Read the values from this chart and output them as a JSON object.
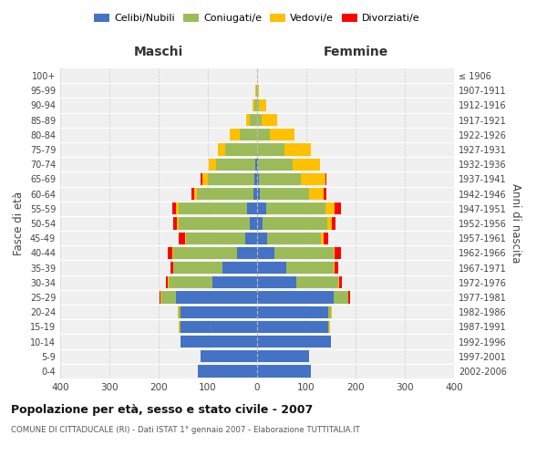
{
  "age_groups": [
    "0-4",
    "5-9",
    "10-14",
    "15-19",
    "20-24",
    "25-29",
    "30-34",
    "35-39",
    "40-44",
    "45-49",
    "50-54",
    "55-59",
    "60-64",
    "65-69",
    "70-74",
    "75-79",
    "80-84",
    "85-89",
    "90-94",
    "95-99",
    "100+"
  ],
  "birth_years": [
    "2002-2006",
    "1997-2001",
    "1992-1996",
    "1987-1991",
    "1982-1986",
    "1977-1981",
    "1972-1976",
    "1967-1971",
    "1962-1966",
    "1957-1961",
    "1952-1956",
    "1947-1951",
    "1942-1946",
    "1937-1941",
    "1932-1936",
    "1927-1931",
    "1922-1926",
    "1917-1921",
    "1912-1916",
    "1907-1911",
    "≤ 1906"
  ],
  "males": {
    "celibi": [
      120,
      115,
      155,
      155,
      155,
      165,
      90,
      70,
      40,
      25,
      15,
      20,
      8,
      5,
      3,
      0,
      0,
      0,
      0,
      0,
      0
    ],
    "coniugati": [
      0,
      0,
      0,
      2,
      5,
      30,
      90,
      100,
      130,
      120,
      145,
      140,
      115,
      95,
      80,
      65,
      35,
      15,
      5,
      2,
      0
    ],
    "vedovi": [
      0,
      0,
      0,
      2,
      2,
      2,
      1,
      1,
      2,
      2,
      3,
      4,
      5,
      12,
      15,
      15,
      20,
      8,
      5,
      2,
      0
    ],
    "divorziati": [
      0,
      0,
      0,
      0,
      0,
      2,
      5,
      5,
      10,
      12,
      7,
      8,
      5,
      2,
      0,
      0,
      0,
      0,
      0,
      0,
      0
    ]
  },
  "females": {
    "nubili": [
      110,
      105,
      150,
      145,
      145,
      155,
      80,
      60,
      35,
      20,
      12,
      18,
      6,
      4,
      2,
      0,
      0,
      0,
      0,
      0,
      0
    ],
    "coniugate": [
      0,
      0,
      0,
      2,
      5,
      30,
      85,
      95,
      120,
      110,
      130,
      120,
      100,
      85,
      70,
      55,
      25,
      10,
      4,
      1,
      0
    ],
    "vedove": [
      0,
      0,
      0,
      1,
      1,
      1,
      1,
      2,
      3,
      5,
      10,
      20,
      30,
      50,
      55,
      55,
      50,
      30,
      15,
      3,
      0
    ],
    "divorziate": [
      0,
      0,
      0,
      0,
      0,
      2,
      7,
      8,
      12,
      10,
      7,
      12,
      5,
      1,
      0,
      0,
      0,
      0,
      0,
      0,
      0
    ]
  },
  "colors": {
    "celibi_nubili": "#4472C4",
    "coniugati": "#9BBB59",
    "vedovi": "#FFC000",
    "divorziati": "#FF0000"
  },
  "xlim": [
    -400,
    400
  ],
  "xticks": [
    -400,
    -300,
    -200,
    -100,
    0,
    100,
    200,
    300,
    400
  ],
  "xlabel_left": "Maschi",
  "xlabel_right": "Femmine",
  "ylabel_left": "Fasce di età",
  "ylabel_right": "Anni di nascita",
  "title": "Popolazione per età, sesso e stato civile - 2007",
  "subtitle": "COMUNE DI CITTADUCALE (RI) - Dati ISTAT 1° gennaio 2007 - Elaborazione TUTTITALIA.IT",
  "legend_labels": [
    "Celibi/Nubili",
    "Coniugati/e",
    "Vedovi/e",
    "Divorziati/e"
  ],
  "bg_color": "#f0f0f0",
  "plot_bg": "#ffffff"
}
